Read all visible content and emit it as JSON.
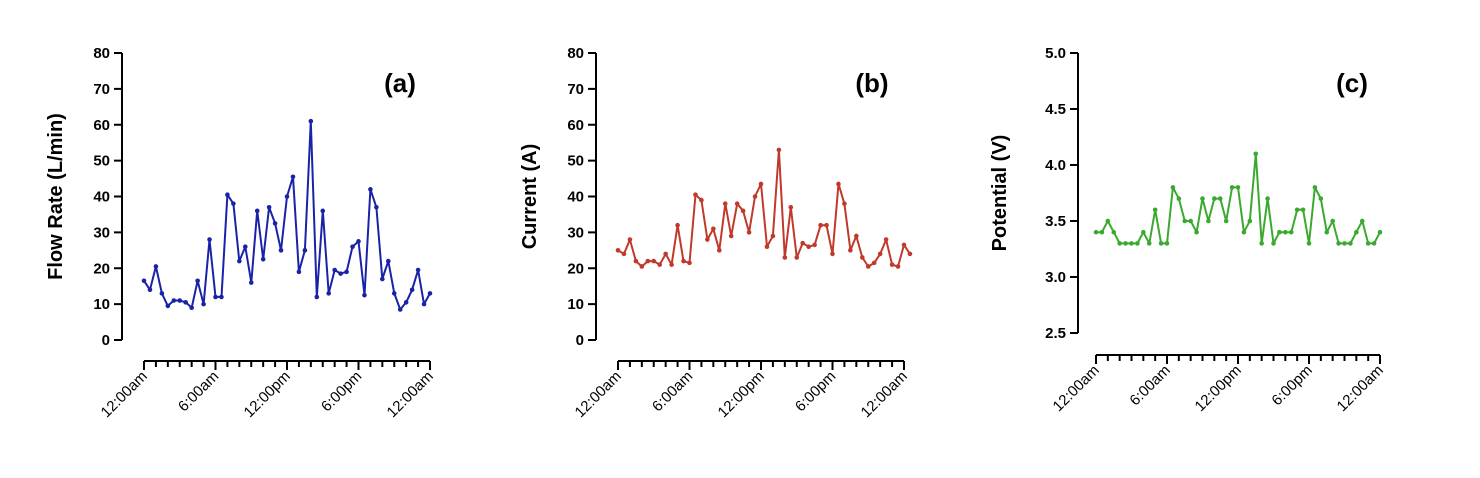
{
  "figure": {
    "panels": [
      "a",
      "b",
      "c"
    ]
  },
  "chart_data": [
    {
      "type": "line",
      "panel_label": "(a)",
      "title": "",
      "xlabel": "",
      "ylabel": "Flow Rate (L/min)",
      "ylim": [
        0,
        80
      ],
      "yticks": [
        0,
        10,
        20,
        30,
        40,
        50,
        60,
        70,
        80
      ],
      "ytick_labels": [
        "0",
        "10",
        "20",
        "30",
        "40",
        "50",
        "60",
        "70",
        "80"
      ],
      "xlim": [
        0,
        48
      ],
      "xtick_labels": [
        "12:00am",
        "6:00am",
        "12:00pm",
        "6:00pm",
        "12:00am"
      ],
      "xtick_positions": [
        0,
        12,
        24,
        36,
        48
      ],
      "color": "#1a23a8",
      "series": [
        {
          "name": "Flow Rate",
          "x": [
            0,
            1,
            2,
            3,
            4,
            5,
            6,
            7,
            8,
            9,
            10,
            11,
            12,
            13,
            14,
            15,
            16,
            17,
            18,
            19,
            20,
            21,
            22,
            23,
            24,
            25,
            26,
            27,
            28,
            29,
            30,
            31,
            32,
            33,
            34,
            35,
            36,
            37,
            38,
            39,
            40,
            41,
            42,
            43,
            44,
            45,
            46,
            47,
            48
          ],
          "values": [
            16.5,
            14,
            20.5,
            13,
            9.5,
            11,
            11,
            10.5,
            9,
            16.5,
            10,
            28,
            12,
            12,
            40.5,
            38,
            22,
            26,
            16,
            36,
            22.5,
            37,
            32.5,
            25,
            40,
            45.5,
            19,
            25,
            61,
            12,
            36,
            13,
            19.5,
            18.5,
            19,
            26,
            27.5,
            12.5,
            42,
            37,
            17,
            22,
            13,
            8.5,
            10.5,
            14,
            19.5,
            10,
            13
          ]
        }
      ]
    },
    {
      "type": "line",
      "panel_label": "(b)",
      "title": "",
      "xlabel": "",
      "ylabel": "Current (A)",
      "ylim": [
        0,
        80
      ],
      "yticks": [
        0,
        10,
        20,
        30,
        40,
        50,
        60,
        70,
        80
      ],
      "ytick_labels": [
        "0",
        "10",
        "20",
        "30",
        "40",
        "50",
        "60",
        "70",
        "80"
      ],
      "xlim": [
        0,
        48
      ],
      "xtick_labels": [
        "12:00am",
        "6:00am",
        "12:00pm",
        "6:00pm",
        "12:00am"
      ],
      "xtick_positions": [
        0,
        12,
        24,
        36,
        48
      ],
      "color": "#c0392b",
      "series": [
        {
          "name": "Current",
          "x": [
            0,
            1,
            2,
            3,
            4,
            5,
            6,
            7,
            8,
            9,
            10,
            11,
            12,
            13,
            14,
            15,
            16,
            17,
            18,
            19,
            20,
            21,
            22,
            23,
            24,
            25,
            26,
            27,
            28,
            29,
            30,
            31,
            32,
            33,
            34,
            35,
            36,
            37,
            38,
            39,
            40,
            41,
            42,
            43,
            44,
            45,
            46,
            47,
            48,
            49
          ],
          "values": [
            25,
            24,
            28,
            22,
            20.5,
            22,
            22,
            21,
            24,
            21,
            32,
            22,
            21.5,
            40.5,
            39,
            28,
            31,
            25,
            38,
            29,
            38,
            36,
            30,
            40,
            43.5,
            26,
            29,
            53,
            23,
            37,
            23,
            27,
            26,
            26.5,
            32,
            32,
            24,
            43.5,
            38,
            25,
            29,
            23,
            20.5,
            21.5,
            24,
            28,
            21,
            20.5,
            26.5,
            24
          ]
        }
      ]
    },
    {
      "type": "line",
      "panel_label": "(c)",
      "title": "",
      "xlabel": "",
      "ylabel": "Potential (V)",
      "ylim": [
        2.5,
        5.0
      ],
      "yticks": [
        2.5,
        3.0,
        3.5,
        4.0,
        4.5,
        5.0
      ],
      "ytick_labels": [
        "2.5",
        "3.0",
        "3.5",
        "4.0",
        "4.5",
        "5.0"
      ],
      "xlim": [
        0,
        48
      ],
      "xtick_labels": [
        "12:00am",
        "6:00am",
        "12:00pm",
        "6:00pm",
        "12:00am"
      ],
      "xtick_positions": [
        0,
        12,
        24,
        36,
        48
      ],
      "color": "#3aaa2f",
      "series": [
        {
          "name": "Potential",
          "x": [
            0,
            1,
            2,
            3,
            4,
            5,
            6,
            7,
            8,
            9,
            10,
            11,
            12,
            13,
            14,
            15,
            16,
            17,
            18,
            19,
            20,
            21,
            22,
            23,
            24,
            25,
            26,
            27,
            28,
            29,
            30,
            31,
            32,
            33,
            34,
            35,
            36,
            37,
            38,
            39,
            40,
            41,
            42,
            43,
            44,
            45,
            46,
            47,
            48
          ],
          "values": [
            3.4,
            3.4,
            3.5,
            3.4,
            3.3,
            3.3,
            3.3,
            3.3,
            3.4,
            3.3,
            3.6,
            3.3,
            3.3,
            3.8,
            3.7,
            3.5,
            3.5,
            3.4,
            3.7,
            3.5,
            3.7,
            3.7,
            3.5,
            3.8,
            3.8,
            3.4,
            3.5,
            4.1,
            3.3,
            3.7,
            3.3,
            3.4,
            3.4,
            3.4,
            3.6,
            3.6,
            3.3,
            3.8,
            3.7,
            3.4,
            3.5,
            3.3,
            3.3,
            3.3,
            3.4,
            3.5,
            3.3,
            3.3,
            3.4
          ]
        }
      ]
    }
  ]
}
